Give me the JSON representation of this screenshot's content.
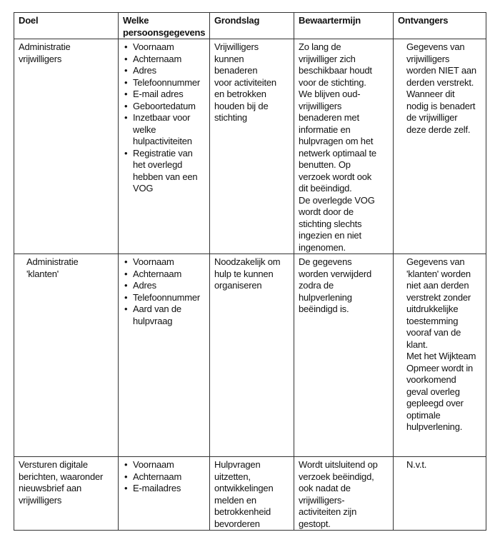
{
  "headers": [
    "Doel",
    "Welke persoonsgegevens",
    "Grondslag",
    "Bewaartermijn",
    "Ontvangers"
  ],
  "rows": [
    {
      "doel": "Administratie\nvrijwilligers",
      "gegevens": [
        "Voornaam",
        "Achternaam",
        "Adres",
        "Telefoonnummer",
        "E-mail adres",
        "Geboortedatum",
        "Inzetbaar voor\nwelke\nhulpactiviteiten",
        "Registratie van\nhet overlegd\nhebben van een\nVOG"
      ],
      "grondslag": "Vrijwilligers\nkunnen benaderen\nvoor activiteiten\nen betrokken\nhouden bij de\nstichting",
      "bewaartermijn": "Zo lang de\nvrijwilliger zich\nbeschikbaar houdt\nvoor de stichting.\nWe blijven oud-\nvrijwilligers\nbenaderen met\ninformatie en\nhulpvragen om het\nnetwerk optimaal te\nbenutten. Op\nverzoek wordt ook\ndit beëindigd.\nDe overlegde VOG\nwordt door de\nstichting slechts\ningezien en niet\ningenomen.",
      "ontvangers": "Gegevens van\nvrijwilligers\nworden NIET aan\nderden verstrekt.\nWanneer dit\nnodig is benadert\nde vrijwilliger\ndeze derde zelf."
    },
    {
      "doel": "Administratie\n'klanten'",
      "gegevens": [
        "Voornaam",
        "Achternaam",
        "Adres",
        "Telefoonnummer",
        "Aard van de\nhulpvraag"
      ],
      "grondslag": "Noodzakelijk om\nhulp te kunnen\norganiseren",
      "bewaartermijn": "De gegevens\nworden verwijderd\nzodra de\nhulpverlening\nbeëindigd is.",
      "ontvangers": "Gegevens van\n'klanten' worden\nniet aan derden\nverstrekt zonder\nuitdrukkelijke\ntoestemming\nvooraf van de\nklant.\nMet het Wijkteam\nOpmeer wordt in\nvoorkomend\ngeval overleg\ngepleegd over\noptimale\nhulpverlening."
    },
    {
      "doel": "Versturen digitale\nberichten, waaronder\nnieuwsbrief aan\nvrijwilligers",
      "gegevens": [
        "Voornaam",
        "Achternaam",
        "E-mailadres"
      ],
      "grondslag": "Hulpvragen\nuitzetten,\nontwikkelingen\nmelden en\nbetrokkenheid\nbevorderen",
      "bewaartermijn": "Wordt uitsluitend op\nverzoek beëindigd,\nook nadat de\nvrijwilligers-\nactiviteiten zijn\ngestopt.",
      "ontvangers": "N.v.t."
    }
  ]
}
